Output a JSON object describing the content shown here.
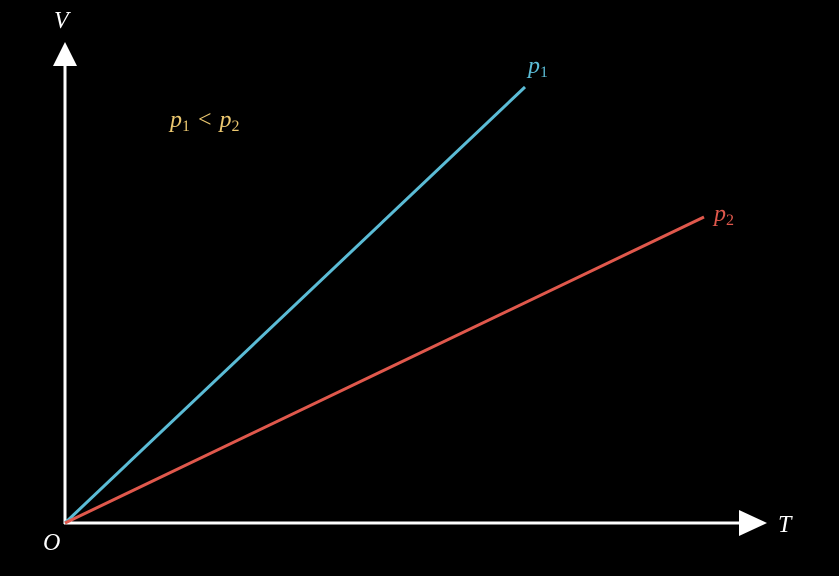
{
  "axes": {
    "y_label": "V",
    "x_label": "T",
    "origin": "O"
  },
  "lines": [
    {
      "symbol": "p",
      "subscript": "1",
      "color": "#5bbcd6"
    },
    {
      "symbol": "p",
      "subscript": "2",
      "color": "#e0584c"
    }
  ],
  "annotation": {
    "left": {
      "symbol": "p",
      "subscript": "1"
    },
    "relation": "<",
    "right": {
      "symbol": "p",
      "subscript": "2"
    },
    "color": "#ecc870"
  }
}
